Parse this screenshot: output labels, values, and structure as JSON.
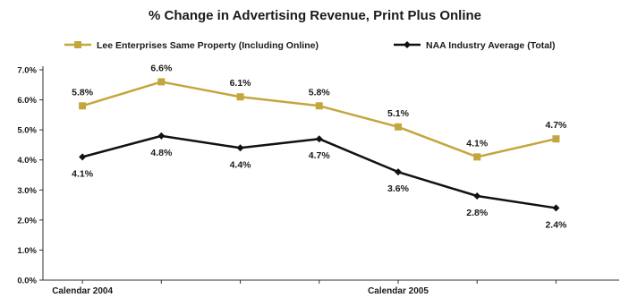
{
  "chart_data": {
    "type": "line",
    "title": "% Change in Advertising Revenue, Print Plus Online",
    "x": [
      1,
      2,
      3,
      4,
      5,
      6,
      7
    ],
    "x_labels": [
      {
        "at": 1,
        "text": "Calendar 2004"
      },
      {
        "at": 5,
        "text": "Calendar 2005"
      }
    ],
    "ylim": [
      0,
      7
    ],
    "yticks": [
      {
        "value": 0,
        "label": "0.0%"
      },
      {
        "value": 1,
        "label": "1.0%"
      },
      {
        "value": 2,
        "label": "2.0%"
      },
      {
        "value": 3,
        "label": "3.0%"
      },
      {
        "value": 4,
        "label": "4.0%"
      },
      {
        "value": 5,
        "label": "5.0%"
      },
      {
        "value": 6,
        "label": "6.0%"
      },
      {
        "value": 7,
        "label": "7.0%"
      }
    ],
    "grid": false,
    "legend_position": "top",
    "series": [
      {
        "name": "Lee Enterprises Same Property (Including Online)",
        "color": "#c4a63e",
        "marker": "square",
        "label_position": "above",
        "values": [
          5.8,
          6.6,
          6.1,
          5.8,
          5.1,
          4.1,
          4.7
        ],
        "labels": [
          "5.8%",
          "6.6%",
          "6.1%",
          "5.8%",
          "5.1%",
          "4.1%",
          "4.7%"
        ]
      },
      {
        "name": "NAA Industry Average (Total)",
        "color": "#111111",
        "marker": "diamond",
        "label_position": "below",
        "values": [
          4.1,
          4.8,
          4.4,
          4.7,
          3.6,
          2.8,
          2.4
        ],
        "labels": [
          "4.1%",
          "4.8%",
          "4.4%",
          "4.7%",
          "3.6%",
          "2.8%",
          "2.4%"
        ]
      }
    ]
  }
}
